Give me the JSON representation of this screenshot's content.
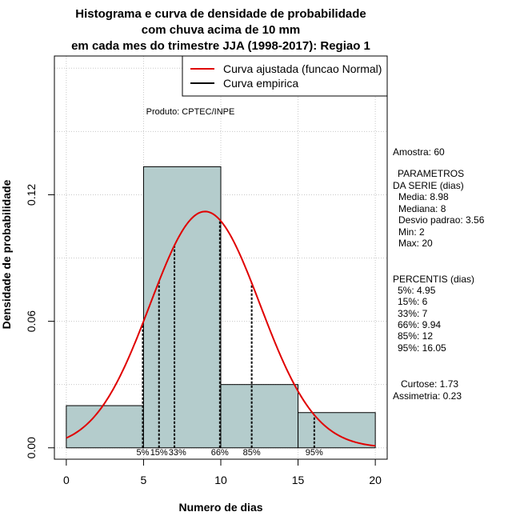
{
  "title_lines": [
    "Histograma e curva de densidade de probabilidade",
    "com chuva acima de 10 mm",
    "em cada mes do trimestre JJA (1998-2017): Regiao 1"
  ],
  "legend": {
    "fitted_label": "Curva ajustada (funcao Normal)",
    "empirical_label": "Curva empirica"
  },
  "product_label": "Produto: CPTEC/INPE",
  "sidebar": {
    "sample": "Amostra: 60",
    "params_header_1": "PARAMETROS",
    "params_header_2": "DA SERIE (dias)",
    "mean": "Media: 8.98",
    "median": "Mediana: 8",
    "stddev": "Desvio padrao: 3.56",
    "min": "Min: 2",
    "max": "Max: 20",
    "pct_header": "PERCENTIS (dias)",
    "p5": "5%: 4.95",
    "p15": "15%: 6",
    "p33": "33%: 7",
    "p66": "66%: 9.94",
    "p85": "85%: 12",
    "p95": "95%: 16.05",
    "kurtosis": "Curtose: 1.73",
    "skewness": "Assimetria: 0.23"
  },
  "colors": {
    "bar_fill": "#b4cccc",
    "fitted_curve": "#e00000",
    "empirical": "#000000",
    "grid": "#c8c8c8"
  },
  "chart_data": {
    "type": "bar",
    "xlabel": "Numero de dias",
    "ylabel": "Densidade de probabilidade",
    "xlim": [
      -0.77,
      20.77
    ],
    "ylim": [
      -0.0054,
      0.1858
    ],
    "x_ticks": [
      0,
      5,
      10,
      15,
      20
    ],
    "x_tick_labels": [
      "0",
      "5",
      "10",
      "15",
      "20"
    ],
    "y_ticks": [
      0.0,
      0.06,
      0.12
    ],
    "y_tick_labels": [
      "0.00",
      "0.06",
      "0.12"
    ],
    "grid": true,
    "legend_position": "top-right",
    "bins": [
      {
        "from": 0,
        "to": 5,
        "density": 0.02
      },
      {
        "from": 5,
        "to": 10,
        "density": 0.1333
      },
      {
        "from": 10,
        "to": 15,
        "density": 0.03
      },
      {
        "from": 15,
        "to": 20,
        "density": 0.0167
      }
    ],
    "normal_fit": {
      "mean": 8.98,
      "sd": 3.56
    },
    "percentiles": [
      {
        "label": "5%",
        "value": 4.95
      },
      {
        "label": "15%",
        "value": 6
      },
      {
        "label": "33%",
        "value": 7
      },
      {
        "label": "66%",
        "value": 9.94
      },
      {
        "label": "85%",
        "value": 12
      },
      {
        "label": "95%",
        "value": 16.05
      }
    ]
  }
}
